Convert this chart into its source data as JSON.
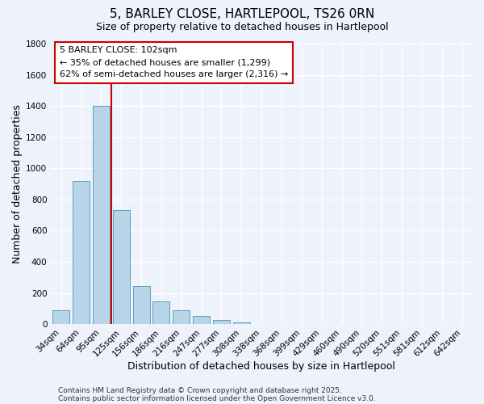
{
  "title": "5, BARLEY CLOSE, HARTLEPOOL, TS26 0RN",
  "subtitle": "Size of property relative to detached houses in Hartlepool",
  "xlabel": "Distribution of detached houses by size in Hartlepool",
  "ylabel": "Number of detached properties",
  "categories": [
    "34sqm",
    "64sqm",
    "95sqm",
    "125sqm",
    "156sqm",
    "186sqm",
    "216sqm",
    "247sqm",
    "277sqm",
    "308sqm",
    "338sqm",
    "368sqm",
    "399sqm",
    "429sqm",
    "460sqm",
    "490sqm",
    "520sqm",
    "551sqm",
    "581sqm",
    "612sqm",
    "642sqm"
  ],
  "values": [
    90,
    920,
    1400,
    730,
    245,
    145,
    88,
    50,
    25,
    10,
    0,
    0,
    0,
    0,
    0,
    0,
    0,
    0,
    0,
    0,
    0
  ],
  "bar_color": "#b8d4e8",
  "bar_edge_color": "#5a9fc0",
  "vline_x_index": 2,
  "vline_color": "#cc0000",
  "ylim": [
    0,
    1800
  ],
  "yticks": [
    0,
    200,
    400,
    600,
    800,
    1000,
    1200,
    1400,
    1600,
    1800
  ],
  "annotation_title": "5 BARLEY CLOSE: 102sqm",
  "annotation_line1": "← 35% of detached houses are smaller (1,299)",
  "annotation_line2": "62% of semi-detached houses are larger (2,316) →",
  "annotation_box_color": "#cc0000",
  "footer1": "Contains HM Land Registry data © Crown copyright and database right 2025.",
  "footer2": "Contains public sector information licensed under the Open Government Licence v3.0.",
  "background_color": "#eef2fb",
  "grid_color": "#ffffff",
  "title_fontsize": 11,
  "subtitle_fontsize": 9,
  "axis_label_fontsize": 9,
  "tick_fontsize": 7.5,
  "annotation_fontsize": 8,
  "footer_fontsize": 6.5
}
